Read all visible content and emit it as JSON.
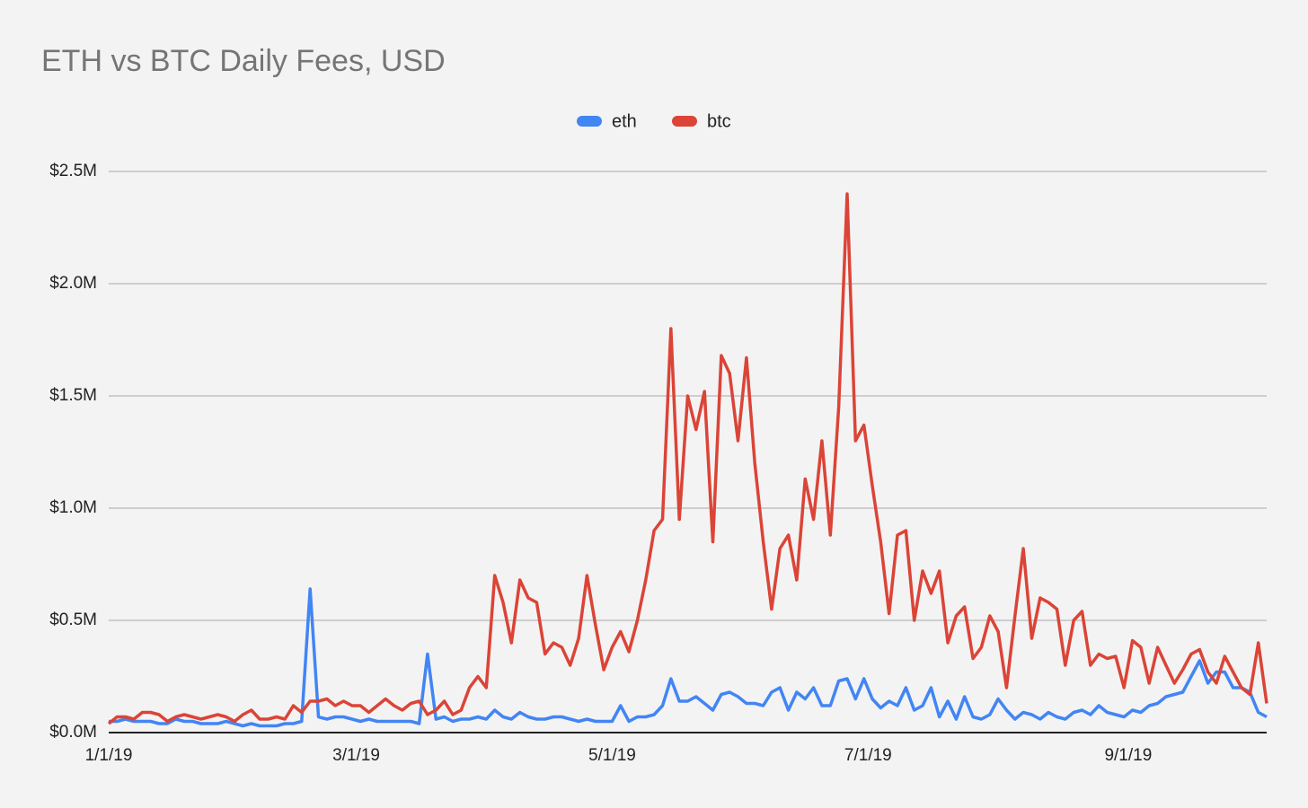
{
  "chart_data": {
    "type": "line",
    "title": "ETH vs BTC Daily Fees, USD",
    "x": [
      "1/1/19",
      "1/3/19",
      "1/5/19",
      "1/7/19",
      "1/9/19",
      "1/11/19",
      "1/13/19",
      "1/15/19",
      "1/17/19",
      "1/19/19",
      "1/21/19",
      "1/23/19",
      "1/25/19",
      "1/27/19",
      "1/29/19",
      "1/31/19",
      "2/2/19",
      "2/4/19",
      "2/6/19",
      "2/8/19",
      "2/10/19",
      "2/12/19",
      "2/14/19",
      "2/16/19",
      "2/18/19",
      "2/20/19",
      "2/22/19",
      "2/24/19",
      "2/26/19",
      "2/28/19",
      "3/2/19",
      "3/4/19",
      "3/6/19",
      "3/8/19",
      "3/10/19",
      "3/12/19",
      "3/14/19",
      "3/16/19",
      "3/18/19",
      "3/20/19",
      "3/22/19",
      "3/24/19",
      "3/26/19",
      "3/28/19",
      "3/30/19",
      "4/1/19",
      "4/3/19",
      "4/5/19",
      "4/7/19",
      "4/9/19",
      "4/11/19",
      "4/13/19",
      "4/15/19",
      "4/17/19",
      "4/19/19",
      "4/21/19",
      "4/23/19",
      "4/25/19",
      "4/27/19",
      "4/29/19",
      "5/1/19",
      "5/3/19",
      "5/5/19",
      "5/7/19",
      "5/9/19",
      "5/11/19",
      "5/13/19",
      "5/15/19",
      "5/17/19",
      "5/19/19",
      "5/21/19",
      "5/23/19",
      "5/25/19",
      "5/27/19",
      "5/29/19",
      "5/31/19",
      "6/2/19",
      "6/4/19",
      "6/6/19",
      "6/8/19",
      "6/10/19",
      "6/12/19",
      "6/14/19",
      "6/16/19",
      "6/18/19",
      "6/20/19",
      "6/22/19",
      "6/24/19",
      "6/26/19",
      "6/28/19",
      "6/30/19",
      "7/2/19",
      "7/4/19",
      "7/6/19",
      "7/8/19",
      "7/10/19",
      "7/12/19",
      "7/14/19",
      "7/16/19",
      "7/18/19",
      "7/20/19",
      "7/22/19",
      "7/24/19",
      "7/26/19",
      "7/28/19",
      "7/30/19",
      "8/1/19",
      "8/3/19",
      "8/5/19",
      "8/7/19",
      "8/9/19",
      "8/11/19",
      "8/13/19",
      "8/15/19",
      "8/17/19",
      "8/19/19",
      "8/21/19",
      "8/23/19",
      "8/25/19",
      "8/27/19",
      "8/29/19",
      "8/31/19",
      "9/2/19",
      "9/4/19",
      "9/6/19",
      "9/8/19",
      "9/10/19",
      "9/12/19",
      "9/14/19",
      "9/16/19",
      "9/18/19",
      "9/20/19",
      "9/22/19",
      "9/24/19",
      "9/26/19",
      "9/28/19",
      "9/30/19",
      "10/2/19",
      "10/4/19"
    ],
    "series": [
      {
        "name": "eth",
        "color": "#4285f4",
        "values": [
          50000,
          50000,
          60000,
          50000,
          50000,
          50000,
          40000,
          40000,
          60000,
          50000,
          50000,
          40000,
          40000,
          40000,
          50000,
          40000,
          30000,
          40000,
          30000,
          30000,
          30000,
          40000,
          40000,
          50000,
          640000,
          70000,
          60000,
          70000,
          70000,
          60000,
          50000,
          60000,
          50000,
          50000,
          50000,
          50000,
          50000,
          40000,
          350000,
          60000,
          70000,
          50000,
          60000,
          60000,
          70000,
          60000,
          100000,
          70000,
          60000,
          90000,
          70000,
          60000,
          60000,
          70000,
          70000,
          60000,
          50000,
          60000,
          50000,
          50000,
          50000,
          120000,
          50000,
          70000,
          70000,
          80000,
          120000,
          240000,
          140000,
          140000,
          160000,
          130000,
          100000,
          170000,
          180000,
          160000,
          130000,
          130000,
          120000,
          180000,
          200000,
          100000,
          180000,
          150000,
          200000,
          120000,
          120000,
          230000,
          240000,
          150000,
          240000,
          150000,
          110000,
          140000,
          120000,
          200000,
          100000,
          120000,
          200000,
          70000,
          140000,
          60000,
          160000,
          70000,
          60000,
          80000,
          150000,
          100000,
          60000,
          90000,
          80000,
          60000,
          90000,
          70000,
          60000,
          90000,
          100000,
          80000,
          120000,
          90000,
          80000,
          70000,
          100000,
          90000,
          120000,
          130000,
          160000,
          170000,
          180000,
          250000,
          320000,
          220000,
          270000,
          270000,
          200000,
          200000,
          180000,
          90000,
          70000
        ]
      },
      {
        "name": "btc",
        "color": "#db4437",
        "values": [
          40000,
          70000,
          70000,
          60000,
          90000,
          90000,
          80000,
          50000,
          70000,
          80000,
          70000,
          60000,
          70000,
          80000,
          70000,
          50000,
          80000,
          100000,
          60000,
          60000,
          70000,
          60000,
          120000,
          90000,
          140000,
          140000,
          150000,
          120000,
          140000,
          120000,
          120000,
          90000,
          120000,
          150000,
          120000,
          100000,
          130000,
          140000,
          80000,
          100000,
          140000,
          80000,
          100000,
          200000,
          250000,
          200000,
          700000,
          580000,
          400000,
          680000,
          600000,
          580000,
          350000,
          400000,
          380000,
          300000,
          420000,
          700000,
          480000,
          280000,
          380000,
          450000,
          360000,
          500000,
          680000,
          900000,
          950000,
          1800000,
          950000,
          1500000,
          1350000,
          1520000,
          850000,
          1680000,
          1600000,
          1300000,
          1670000,
          1200000,
          850000,
          550000,
          820000,
          880000,
          680000,
          1130000,
          950000,
          1300000,
          880000,
          1450000,
          2400000,
          1300000,
          1370000,
          1100000,
          850000,
          530000,
          880000,
          900000,
          500000,
          720000,
          620000,
          720000,
          400000,
          520000,
          560000,
          330000,
          380000,
          520000,
          450000,
          200000,
          520000,
          820000,
          420000,
          600000,
          580000,
          550000,
          300000,
          500000,
          540000,
          300000,
          350000,
          330000,
          340000,
          200000,
          410000,
          380000,
          220000,
          380000,
          300000,
          220000,
          280000,
          350000,
          370000,
          270000,
          220000,
          340000,
          270000,
          200000,
          170000,
          400000,
          130000
        ]
      }
    ],
    "xlim": [
      "1/1/19",
      "10/4/19"
    ],
    "xticks": [
      "1/1/19",
      "3/1/19",
      "5/1/19",
      "7/1/19",
      "9/1/19"
    ],
    "ylim": [
      0,
      2500000
    ],
    "yticks": [
      {
        "value": 0,
        "label": "$0.0M"
      },
      {
        "value": 500000,
        "label": "$0.5M"
      },
      {
        "value": 1000000,
        "label": "$1.0M"
      },
      {
        "value": 1500000,
        "label": "$1.5M"
      },
      {
        "value": 2000000,
        "label": "$2.0M"
      },
      {
        "value": 2500000,
        "label": "$2.5M"
      }
    ],
    "grid": true,
    "legend": "top"
  }
}
